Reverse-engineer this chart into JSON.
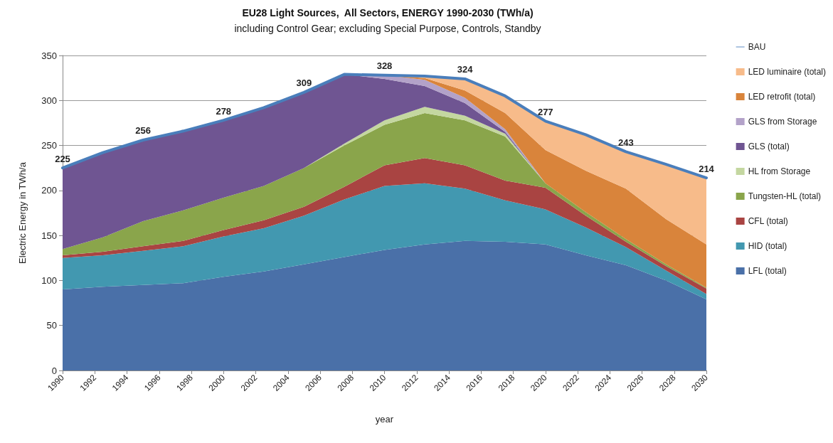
{
  "chart_data": {
    "type": "area",
    "title": "EU28 Light Sources,  All Sectors, ENERGY 1990-2030 (TWh/a)",
    "subtitle": "including Control Gear; excluding Special Purpose, Controls, Standby",
    "xlabel": "year",
    "ylabel": "Electric Energy in TWh/a",
    "x": [
      1990,
      1992.5,
      1995,
      1997.5,
      2000,
      2002.5,
      2005,
      2007.5,
      2010,
      2012.5,
      2015,
      2017.5,
      2020,
      2022.5,
      2025,
      2027.5,
      2030
    ],
    "xlim": [
      1990,
      2030
    ],
    "xticks": [
      1990,
      1992,
      1994,
      1996,
      1998,
      2000,
      2002,
      2004,
      2006,
      2008,
      2010,
      2012,
      2014,
      2016,
      2018,
      2020,
      2022,
      2024,
      2026,
      2028,
      2030
    ],
    "ylim": [
      0,
      350
    ],
    "yticks": [
      0,
      50,
      100,
      150,
      200,
      250,
      300,
      350
    ],
    "stacked": true,
    "grid": "y",
    "legend": "right",
    "marker": "none",
    "series": [
      {
        "name": "LFL (total)",
        "color": "#4a70a8",
        "values": [
          90,
          93,
          95,
          97,
          104,
          110,
          118,
          126,
          134,
          140,
          144,
          143,
          140,
          128,
          117,
          100,
          79
        ]
      },
      {
        "name": "HID (total)",
        "color": "#4298b0",
        "values": [
          35,
          35,
          38,
          41,
          45,
          48,
          54,
          64,
          71,
          68,
          58,
          46,
          39,
          31,
          20,
          11,
          6
        ]
      },
      {
        "name": "CFL (total)",
        "color": "#a94442",
        "values": [
          3,
          4,
          5,
          6,
          7,
          9,
          10,
          14,
          23,
          28,
          26,
          22,
          24,
          13,
          6,
          5,
          6
        ]
      },
      {
        "name": "Tungsten-HL (total)",
        "color": "#8aa54b",
        "values": [
          7,
          16,
          28,
          34,
          36,
          38,
          43,
          46,
          45,
          50,
          50,
          49,
          5,
          4,
          3,
          2,
          1
        ]
      },
      {
        "name": "HL from Storage",
        "color": "#c4d7a0",
        "values": [
          null,
          null,
          null,
          null,
          null,
          null,
          0,
          2,
          5,
          7,
          5,
          3,
          0,
          null,
          null,
          null,
          null
        ]
      },
      {
        "name": "GLS (total)",
        "color": "#6f5592",
        "values": [
          90,
          94,
          90,
          88,
          86,
          87,
          84,
          77,
          46,
          23,
          14,
          2,
          0,
          null,
          null,
          null,
          null
        ]
      },
      {
        "name": "GLS from Storage",
        "color": "#b3a2c9",
        "values": [
          null,
          null,
          null,
          null,
          null,
          null,
          null,
          0,
          4,
          7,
          6,
          3,
          0,
          null,
          null,
          null,
          null
        ]
      },
      {
        "name": "LED retrofit (total)",
        "color": "#d9843b",
        "values": [
          null,
          null,
          null,
          null,
          null,
          null,
          null,
          null,
          0,
          2,
          8,
          18,
          37,
          46,
          56,
          50,
          48
        ]
      },
      {
        "name": "LED luminaire (total)",
        "color": "#f7bb8a",
        "values": [
          null,
          null,
          null,
          null,
          null,
          null,
          null,
          null,
          0,
          2,
          13,
          19,
          32,
          40,
          41,
          61,
          74
        ]
      },
      {
        "name": "BAU",
        "type": "line",
        "color": "#4a7ebb",
        "values": [
          225,
          242,
          256,
          266,
          278,
          292,
          309,
          329,
          328,
          327,
          324,
          305,
          277,
          262,
          243,
          229,
          214
        ],
        "value_labels": [
          "225",
          null,
          "256",
          null,
          "278",
          null,
          "309",
          null,
          "328",
          null,
          "324",
          null,
          "277",
          null,
          "243",
          null,
          "214"
        ]
      }
    ]
  }
}
